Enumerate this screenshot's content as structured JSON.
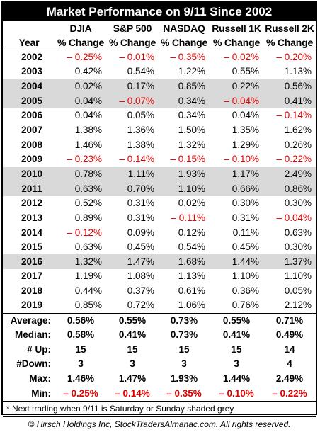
{
  "title": "Market Performance on 9/11 Since 2002",
  "headers": {
    "row1": [
      "",
      "DJIA",
      "S&P 500",
      "NASDAQ",
      "Russell 1K",
      "Russell 2K"
    ],
    "row2": [
      "Year",
      "% Change",
      "% Change",
      "% Change",
      "% Change",
      "% Change"
    ]
  },
  "rows": [
    {
      "year": "2002",
      "shaded": false,
      "values": [
        "– 0.25%",
        "– 0.01%",
        "– 0.35%",
        "– 0.02%",
        "– 0.20%"
      ]
    },
    {
      "year": "2003",
      "shaded": false,
      "values": [
        "0.42%",
        "0.54%",
        "1.22%",
        "0.55%",
        "1.13%"
      ]
    },
    {
      "year": "2004",
      "shaded": true,
      "values": [
        "0.02%",
        "0.17%",
        "0.85%",
        "0.22%",
        "0.56%"
      ]
    },
    {
      "year": "2005",
      "shaded": true,
      "values": [
        "0.04%",
        "– 0.07%",
        "0.34%",
        "– 0.04%",
        "0.41%"
      ]
    },
    {
      "year": "2006",
      "shaded": false,
      "values": [
        "0.04%",
        "0.05%",
        "0.34%",
        "0.04%",
        "– 0.14%"
      ]
    },
    {
      "year": "2007",
      "shaded": false,
      "values": [
        "1.38%",
        "1.36%",
        "1.50%",
        "1.35%",
        "1.62%"
      ]
    },
    {
      "year": "2008",
      "shaded": false,
      "values": [
        "1.46%",
        "1.38%",
        "1.32%",
        "1.29%",
        "0.26%"
      ]
    },
    {
      "year": "2009",
      "shaded": false,
      "values": [
        "– 0.23%",
        "– 0.14%",
        "– 0.15%",
        "– 0.10%",
        "– 0.22%"
      ]
    },
    {
      "year": "2010",
      "shaded": true,
      "values": [
        "0.78%",
        "1.11%",
        "1.93%",
        "1.17%",
        "2.49%"
      ]
    },
    {
      "year": "2011",
      "shaded": true,
      "values": [
        "0.63%",
        "0.70%",
        "1.10%",
        "0.66%",
        "0.86%"
      ]
    },
    {
      "year": "2012",
      "shaded": false,
      "values": [
        "0.52%",
        "0.31%",
        "0.02%",
        "0.30%",
        "0.30%"
      ]
    },
    {
      "year": "2013",
      "shaded": false,
      "values": [
        "0.89%",
        "0.31%",
        "– 0.11%",
        "0.31%",
        "– 0.04%"
      ]
    },
    {
      "year": "2014",
      "shaded": false,
      "values": [
        "– 0.12%",
        "0.09%",
        "0.12%",
        "0.11%",
        "0.63%"
      ]
    },
    {
      "year": "2015",
      "shaded": false,
      "values": [
        "0.63%",
        "0.45%",
        "0.54%",
        "0.45%",
        "0.30%"
      ]
    },
    {
      "year": "2016",
      "shaded": true,
      "values": [
        "1.32%",
        "1.47%",
        "1.68%",
        "1.44%",
        "1.37%"
      ]
    },
    {
      "year": "2017",
      "shaded": false,
      "values": [
        "1.19%",
        "1.08%",
        "1.13%",
        "1.10%",
        "1.10%"
      ]
    },
    {
      "year": "2018",
      "shaded": false,
      "values": [
        "0.44%",
        "0.37%",
        "0.61%",
        "0.36%",
        "0.05%"
      ]
    },
    {
      "year": "2019",
      "shaded": false,
      "values": [
        "0.85%",
        "0.72%",
        "1.06%",
        "0.76%",
        "2.12%"
      ]
    }
  ],
  "stats": [
    {
      "label": "Average:",
      "values": [
        "0.56%",
        "0.55%",
        "0.73%",
        "0.55%",
        "0.71%"
      ]
    },
    {
      "label": "Median:",
      "values": [
        "0.58%",
        "0.41%",
        "0.73%",
        "0.41%",
        "0.49%"
      ]
    },
    {
      "label": "# Up:",
      "values": [
        "15",
        "15",
        "15",
        "15",
        "14"
      ]
    },
    {
      "label": "#Down:",
      "values": [
        "3",
        "3",
        "3",
        "3",
        "4"
      ]
    },
    {
      "label": "Max:",
      "values": [
        "1.46%",
        "1.47%",
        "1.93%",
        "1.44%",
        "2.49%"
      ]
    },
    {
      "label": "Min:",
      "values": [
        "– 0.25%",
        "– 0.14%",
        "– 0.35%",
        "– 0.10%",
        "– 0.22%"
      ]
    }
  ],
  "footnote": "* Next trading when 9/11 is Saturday or Sunday shaded grey",
  "copyright": "© Hirsch Holdings Inc, StockTradersAlmanac.com. All rights reserved.",
  "colors": {
    "negative": "#e00000",
    "shade": "#d9d9d9",
    "title_bg": "#000000"
  }
}
